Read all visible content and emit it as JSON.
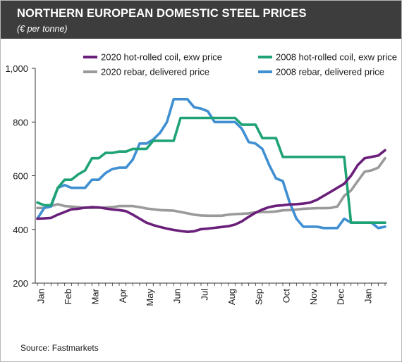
{
  "header": {
    "title": "NORTHERN EUROPEAN DOMESTIC STEEL PRICES",
    "subtitle": "(€ per tonne)"
  },
  "footer": {
    "source": "Source: Fastmarkets"
  },
  "chart_data": {
    "type": "line",
    "title": "NORTHERN EUROPEAN DOMESTIC STEEL PRICES",
    "subtitle": "(€ per tonne)",
    "xlabel": "",
    "ylabel": "",
    "x_unit": "week",
    "ylim": [
      200,
      1000
    ],
    "yticks": [
      200,
      400,
      600,
      800,
      1000
    ],
    "ytick_labels": [
      "200",
      "400",
      "600",
      "800",
      "1,000"
    ],
    "xlim": [
      0,
      51
    ],
    "categories": [
      "Jan",
      "Feb",
      "Mar",
      "Apr",
      "May",
      "Jun",
      "Jul",
      "Aug",
      "Sep",
      "Oct",
      "Nov",
      "Dec",
      "Jan"
    ],
    "category_positions": [
      0,
      4,
      8,
      12,
      16,
      20,
      24,
      28,
      32,
      36,
      40,
      44,
      48
    ],
    "grid": false,
    "legend": "top",
    "series": [
      {
        "name": "2020 hot-rolled coil, exw price",
        "color": "#6a1f7a",
        "x": [
          0,
          1,
          2,
          3,
          4,
          5,
          6,
          7,
          8,
          9,
          10,
          11,
          12,
          13,
          14,
          15,
          16,
          17,
          18,
          19,
          20,
          21,
          22,
          23,
          24,
          25,
          26,
          27,
          28,
          29,
          30,
          31,
          32,
          33,
          34,
          35,
          36,
          37,
          38,
          39,
          40,
          41,
          42,
          43,
          44,
          45,
          46,
          47,
          48,
          49,
          50,
          51
        ],
        "values": [
          440,
          441,
          443,
          455,
          465,
          475,
          477,
          481,
          483,
          482,
          478,
          474,
          472,
          468,
          455,
          440,
          425,
          416,
          409,
          403,
          398,
          394,
          391,
          393,
          401,
          403,
          406,
          409,
          412,
          418,
          430,
          447,
          462,
          474,
          483,
          488,
          490,
          493,
          494,
          496,
          500,
          510,
          525,
          540,
          555,
          570,
          600,
          640,
          665,
          670,
          675,
          695
        ]
      },
      {
        "name": "2020 rebar, delivered price",
        "color": "#9a9a9a",
        "x": [
          0,
          1,
          2,
          3,
          4,
          5,
          6,
          7,
          8,
          9,
          10,
          11,
          12,
          13,
          14,
          15,
          16,
          17,
          18,
          19,
          20,
          21,
          22,
          23,
          24,
          25,
          26,
          27,
          28,
          29,
          30,
          31,
          32,
          33,
          34,
          35,
          36,
          37,
          38,
          39,
          40,
          41,
          42,
          43,
          44,
          45,
          46,
          47,
          48,
          49,
          50,
          51
        ],
        "values": [
          480,
          480,
          487,
          494,
          487,
          485,
          483,
          481,
          480,
          481,
          482,
          483,
          487,
          487,
          487,
          483,
          478,
          475,
          472,
          471,
          470,
          465,
          460,
          455,
          452,
          451,
          451,
          451,
          455,
          457,
          458,
          460,
          464,
          465,
          465,
          467,
          471,
          472,
          474,
          477,
          478,
          479,
          479,
          480,
          485,
          525,
          545,
          580,
          615,
          620,
          630,
          665
        ]
      },
      {
        "name": "2008 hot-rolled coil, exw price",
        "color": "#1fa374",
        "x": [
          0,
          1,
          2,
          3,
          4,
          5,
          6,
          7,
          8,
          9,
          10,
          11,
          12,
          13,
          14,
          15,
          16,
          17,
          18,
          19,
          20,
          21,
          22,
          23,
          24,
          25,
          26,
          27,
          28,
          29,
          30,
          31,
          32,
          33,
          34,
          35,
          36,
          37,
          38,
          39,
          40,
          41,
          42,
          43,
          44,
          45,
          46,
          47,
          48,
          49,
          50,
          51
        ],
        "values": [
          500,
          490,
          490,
          555,
          585,
          585,
          605,
          620,
          665,
          665,
          685,
          685,
          690,
          690,
          700,
          700,
          700,
          730,
          730,
          730,
          730,
          815,
          815,
          815,
          815,
          815,
          815,
          815,
          815,
          815,
          790,
          790,
          790,
          740,
          740,
          740,
          670,
          670,
          670,
          670,
          670,
          670,
          670,
          670,
          670,
          670,
          425,
          425,
          425,
          425,
          425,
          425
        ]
      },
      {
        "name": "2008 rebar, delivered price",
        "color": "#3f8fd2",
        "x": [
          0,
          1,
          2,
          3,
          4,
          5,
          6,
          7,
          8,
          9,
          10,
          11,
          12,
          13,
          14,
          15,
          16,
          17,
          18,
          19,
          20,
          21,
          22,
          23,
          24,
          25,
          26,
          27,
          28,
          29,
          30,
          31,
          32,
          33,
          34,
          35,
          36,
          37,
          38,
          39,
          40,
          41,
          42,
          43,
          44,
          45,
          46,
          47,
          48,
          49,
          50,
          51
        ],
        "values": [
          440,
          480,
          485,
          555,
          565,
          555,
          555,
          555,
          585,
          585,
          610,
          625,
          630,
          630,
          660,
          720,
          720,
          735,
          760,
          800,
          885,
          885,
          885,
          855,
          850,
          840,
          800,
          800,
          800,
          800,
          775,
          725,
          720,
          700,
          640,
          590,
          580,
          500,
          440,
          410,
          410,
          410,
          405,
          405,
          405,
          440,
          425,
          425,
          425,
          425,
          405,
          410
        ]
      }
    ]
  }
}
